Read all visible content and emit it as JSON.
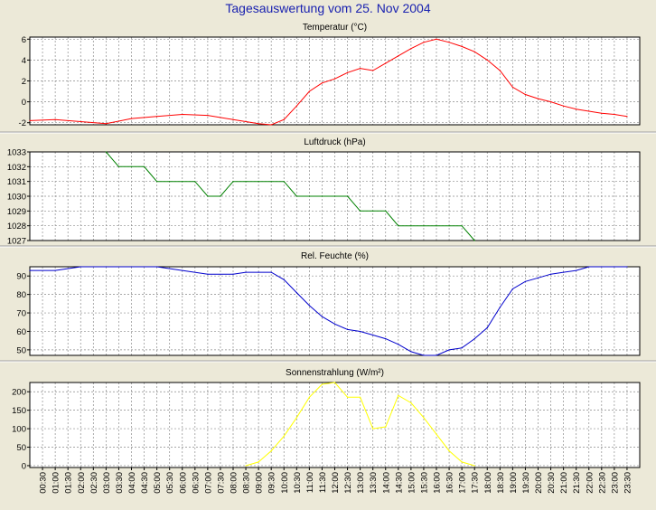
{
  "title": "Tagesauswertung vom 25. Nov 2004",
  "colors": {
    "background": "#ece9d8",
    "plot_background": "#ffffff",
    "grid": "#8c8c8c",
    "title_text": "#1a22b0",
    "axis_text": "#000000"
  },
  "chart_data": [
    {
      "type": "line",
      "title": "Temperatur (°C)",
      "ylim": [
        -2.2,
        6.2
      ],
      "yticks": [
        -2,
        0,
        2,
        4,
        6
      ],
      "grid": true,
      "series": [
        {
          "color": "#ff0000",
          "x": [
            0,
            1,
            2,
            3,
            4,
            5,
            6,
            7,
            8,
            8.5,
            9,
            9.5,
            10,
            10.5,
            11,
            11.5,
            12,
            12.5,
            13,
            13.5,
            14,
            14.5,
            15,
            15.5,
            16,
            16.5,
            17,
            17.5,
            18,
            18.5,
            19,
            19.5,
            20,
            20.5,
            21,
            21.5,
            22,
            22.5,
            23,
            23.5
          ],
          "values": [
            -1.8,
            -1.7,
            -1.9,
            -2.1,
            -1.6,
            -1.4,
            -1.2,
            -1.3,
            -1.7,
            -1.9,
            -2.1,
            -2.2,
            -1.7,
            -0.4,
            1.0,
            1.8,
            2.2,
            2.8,
            3.2,
            3.0,
            3.7,
            4.4,
            5.1,
            5.7,
            6.0,
            5.7,
            5.3,
            4.8,
            4.0,
            3.0,
            1.4,
            0.7,
            0.3,
            0.0,
            -0.4,
            -0.7,
            -0.9,
            -1.1,
            -1.2,
            -1.4
          ]
        }
      ]
    },
    {
      "type": "line",
      "title": "Luftdruck (hPa)",
      "ylim": [
        1027,
        1033
      ],
      "yticks": [
        1027,
        1028,
        1029,
        1030,
        1031,
        1032,
        1033
      ],
      "grid": true,
      "series": [
        {
          "color": "#008000",
          "x": [
            3,
            3.5,
            4,
            4.5,
            5,
            5.5,
            6,
            6.5,
            7,
            7.5,
            8,
            8.5,
            9,
            9.5,
            10,
            10.5,
            11,
            11.5,
            12,
            12.5,
            13,
            13.5,
            14,
            14.5,
            15,
            15.5,
            16,
            16.5,
            17,
            17.5
          ],
          "values": [
            1033,
            1032,
            1032,
            1032,
            1031,
            1031,
            1031,
            1031,
            1030,
            1030,
            1031,
            1031,
            1031,
            1031,
            1031,
            1030,
            1030,
            1030,
            1030,
            1030,
            1029,
            1029,
            1029,
            1028,
            1028,
            1028,
            1028,
            1028,
            1028,
            1027
          ]
        }
      ]
    },
    {
      "type": "line",
      "title": "Rel. Feuchte (%)",
      "ylim": [
        47,
        95
      ],
      "yticks": [
        50,
        60,
        70,
        80,
        90
      ],
      "grid": true,
      "series": [
        {
          "color": "#0000cc",
          "x": [
            0,
            1,
            2,
            3,
            4,
            5,
            6,
            7,
            8,
            8.5,
            9,
            9.5,
            10,
            10.5,
            11,
            11.5,
            12,
            12.5,
            13,
            13.5,
            14,
            14.5,
            15,
            15.5,
            16,
            16.5,
            17,
            17.5,
            18,
            18.5,
            19,
            19.5,
            20,
            20.5,
            21,
            21.5,
            22,
            22.5,
            23,
            23.5
          ],
          "values": [
            93,
            93,
            95,
            95,
            95,
            95,
            93,
            91,
            91,
            92,
            92,
            92,
            88,
            81,
            74,
            68,
            64,
            61,
            60,
            58,
            56,
            53,
            49,
            47,
            47,
            50,
            51,
            56,
            62,
            73,
            83,
            87,
            89,
            91,
            92,
            93,
            95,
            95,
            95,
            95
          ]
        }
      ]
    },
    {
      "type": "line",
      "title": "Sonnenstrahlung (W/m²)",
      "ylim": [
        -5,
        225
      ],
      "yticks": [
        0,
        50,
        100,
        150,
        200
      ],
      "grid": true,
      "series": [
        {
          "color": "#ffff00",
          "x": [
            8.5,
            9,
            9.5,
            10,
            10.5,
            11,
            11.5,
            12,
            12.5,
            13,
            13.5,
            14,
            14.5,
            15,
            15.5,
            16,
            16.5,
            17,
            17.5
          ],
          "values": [
            0,
            10,
            40,
            80,
            130,
            185,
            220,
            225,
            185,
            185,
            100,
            105,
            190,
            170,
            130,
            85,
            40,
            10,
            0
          ]
        }
      ]
    }
  ],
  "x_axis": {
    "tick_labels": [
      "00:30",
      "01:00",
      "01:30",
      "02:00",
      "02:30",
      "03:00",
      "03:30",
      "04:00",
      "04:30",
      "05:00",
      "05:30",
      "06:00",
      "06:30",
      "07:00",
      "07:30",
      "08:00",
      "08:30",
      "09:00",
      "09:30",
      "10:00",
      "10:30",
      "11:00",
      "11:30",
      "12:00",
      "12:30",
      "13:00",
      "13:30",
      "14:00",
      "14:30",
      "15:00",
      "15:30",
      "16:00",
      "16:30",
      "17:00",
      "17:30",
      "18:00",
      "18:30",
      "19:00",
      "19:30",
      "20:00",
      "20:30",
      "21:00",
      "21:30",
      "22:00",
      "22:30",
      "23:00",
      "23:30"
    ]
  }
}
